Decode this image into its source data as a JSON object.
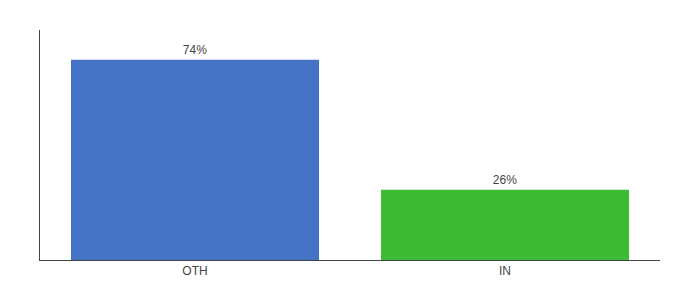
{
  "chart_data": {
    "type": "bar",
    "categories": [
      "OTH",
      "IN"
    ],
    "values": [
      74,
      26
    ],
    "value_labels": [
      "74%",
      "26%"
    ],
    "colors": [
      "#4472c4",
      "#3dbb35"
    ],
    "ylim": [
      0,
      85
    ],
    "yticks": [],
    "grid": false,
    "data_labels": true,
    "tick_labels": "x"
  }
}
